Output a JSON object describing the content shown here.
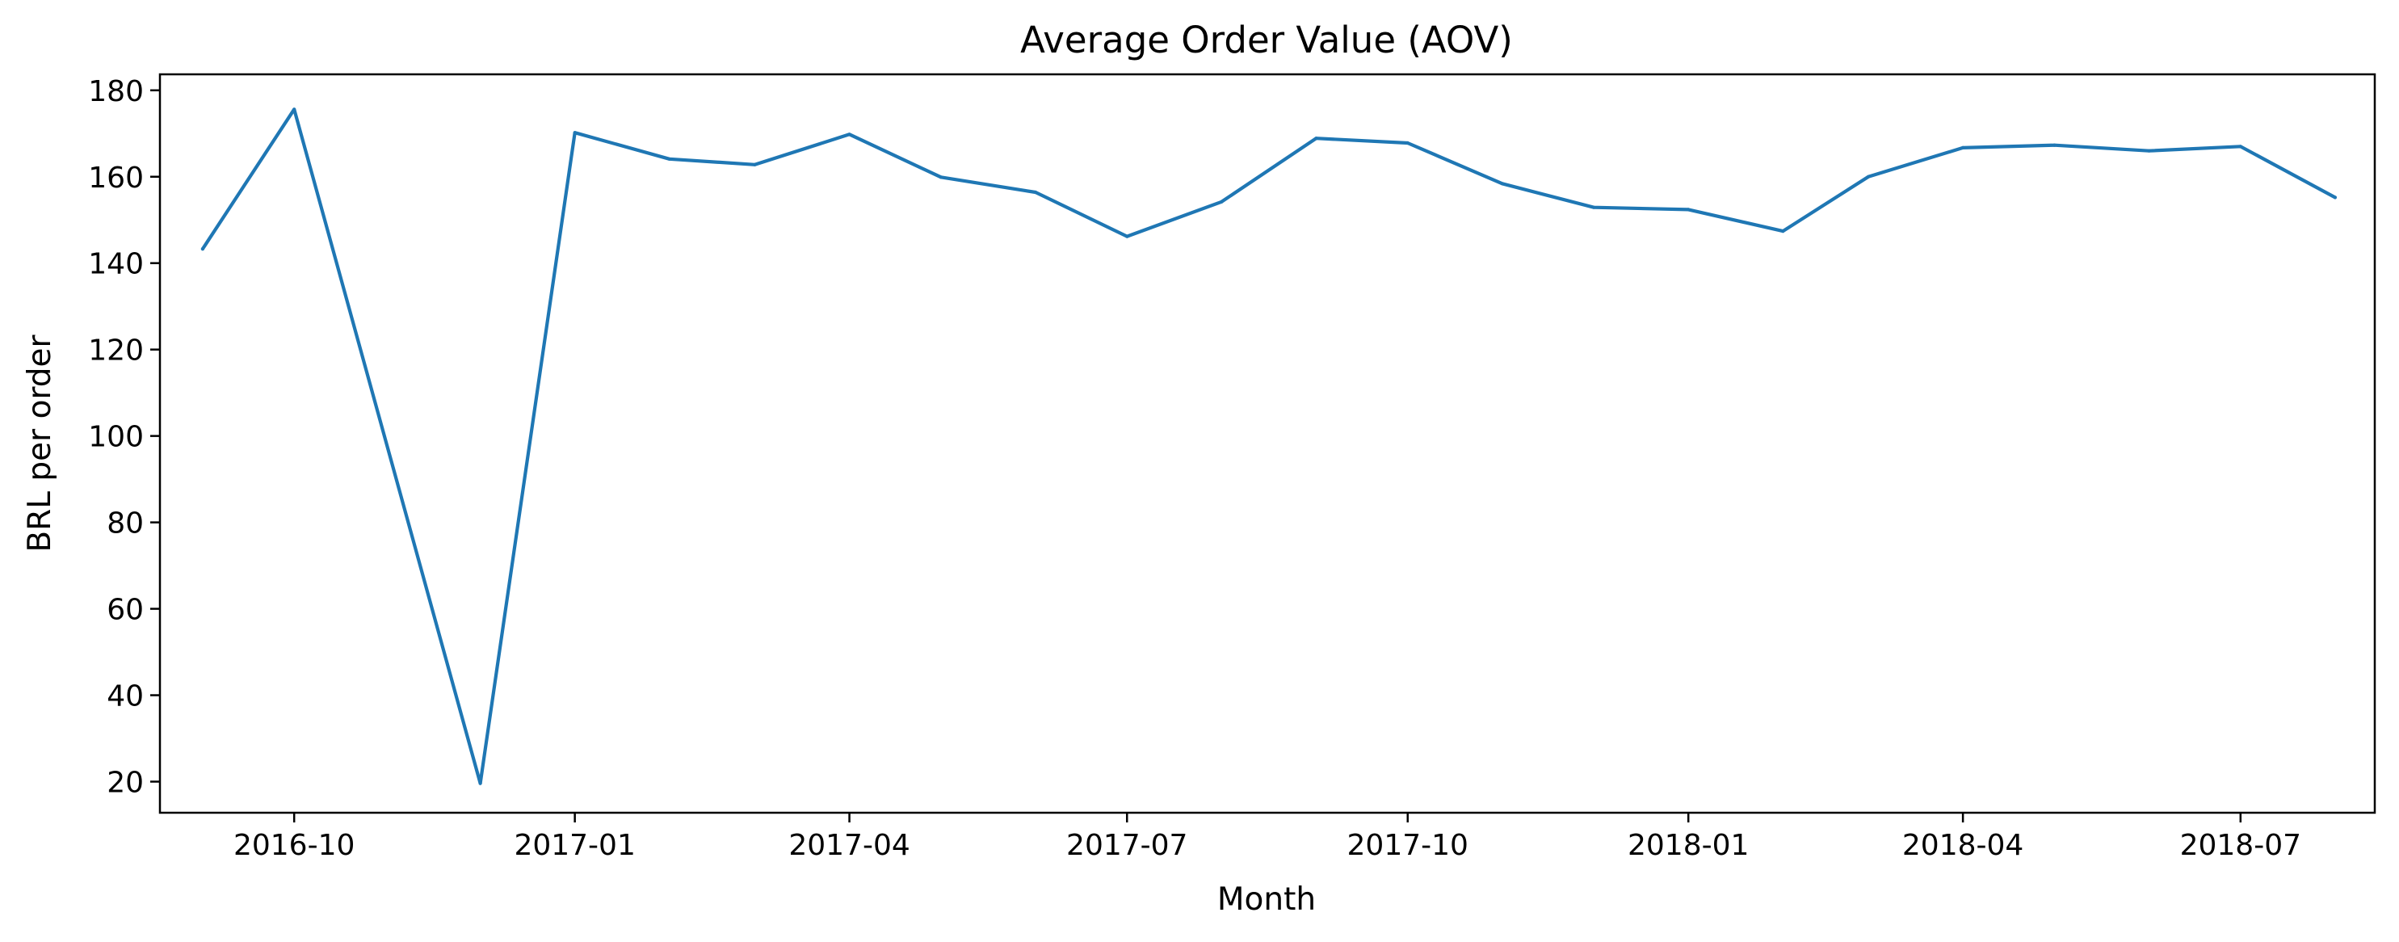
{
  "chart_data": {
    "type": "line",
    "title": "Average Order Value (AOV)",
    "xlabel": "Month",
    "ylabel": "BRL per order",
    "x": [
      "2016-09",
      "2016-10",
      "2016-12",
      "2017-01",
      "2017-02",
      "2017-03",
      "2017-04",
      "2017-05",
      "2017-06",
      "2017-07",
      "2017-08",
      "2017-09",
      "2017-10",
      "2017-11",
      "2017-12",
      "2018-01",
      "2018-02",
      "2018-03",
      "2018-04",
      "2018-05",
      "2018-06",
      "2018-07",
      "2018-08"
    ],
    "series": [
      {
        "color": "#1f77b4",
        "values": [
          143.3,
          175.6,
          19.6,
          170.2,
          164.1,
          162.8,
          169.8,
          159.9,
          156.4,
          146.2,
          154.2,
          168.9,
          167.8,
          158.4,
          152.9,
          152.4,
          147.4,
          160.0,
          166.7,
          167.3,
          166.0,
          167.0,
          155.2
        ]
      }
    ],
    "x_ticks": [
      "2016-10",
      "2017-01",
      "2017-04",
      "2017-07",
      "2017-10",
      "2018-01",
      "2018-04",
      "2018-07"
    ],
    "y_ticks": [
      20,
      40,
      60,
      80,
      100,
      120,
      140,
      160,
      180
    ],
    "ylim": [
      12.8,
      183.7
    ],
    "xlim": [
      "2016-08-18",
      "2018-08-14"
    ],
    "grid": false,
    "legend": "none"
  }
}
